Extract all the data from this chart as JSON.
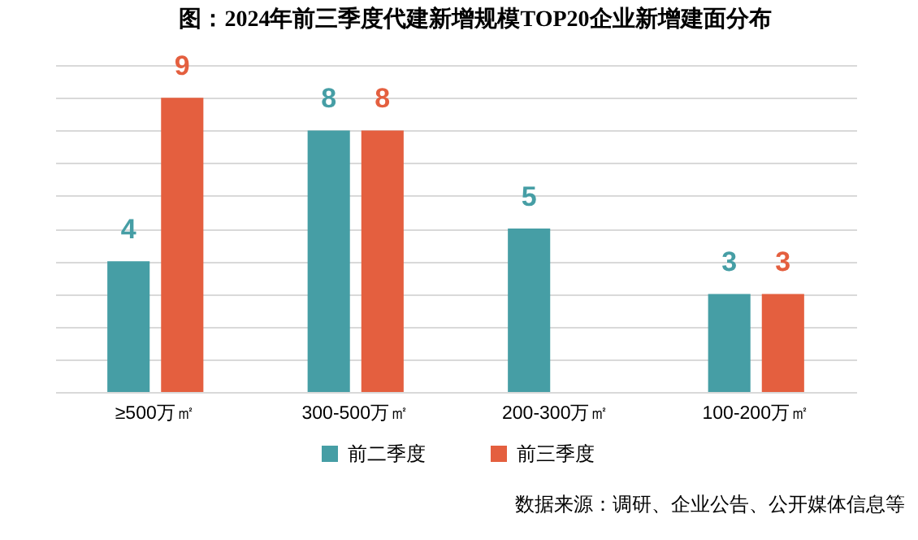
{
  "chart_data": {
    "type": "bar",
    "title": "图：2024年前三季度代建新增规模TOP20企业新增建面分布",
    "categories": [
      "≥500万㎡",
      "300-500万㎡",
      "200-300万㎡",
      "100-200万㎡"
    ],
    "series": [
      {
        "name": "前二季度",
        "color": "#469ea5",
        "values": [
          4,
          8,
          5,
          3
        ]
      },
      {
        "name": "前三季度",
        "color": "#e45f3f",
        "values": [
          9,
          8,
          null,
          3
        ]
      }
    ],
    "ylim": [
      0,
      10
    ],
    "yticks": [
      {
        "value": 0,
        "label": null
      },
      {
        "value": 1,
        "label": null
      },
      {
        "value": 2,
        "label": null
      },
      {
        "value": 3,
        "label": null
      },
      {
        "value": 4,
        "label": null
      },
      {
        "value": 5,
        "label": null
      },
      {
        "value": 6,
        "label": null
      },
      {
        "value": 7,
        "label": null
      },
      {
        "value": 8,
        "label": null
      },
      {
        "value": 9,
        "label": null
      },
      {
        "value": 10,
        "label": null
      }
    ],
    "grid": "y",
    "tick_labels": "x",
    "legend": "bottom",
    "data_labels": true,
    "annotations": [
      "数据来源：调研、企业公告、公开媒体信息等"
    ]
  }
}
